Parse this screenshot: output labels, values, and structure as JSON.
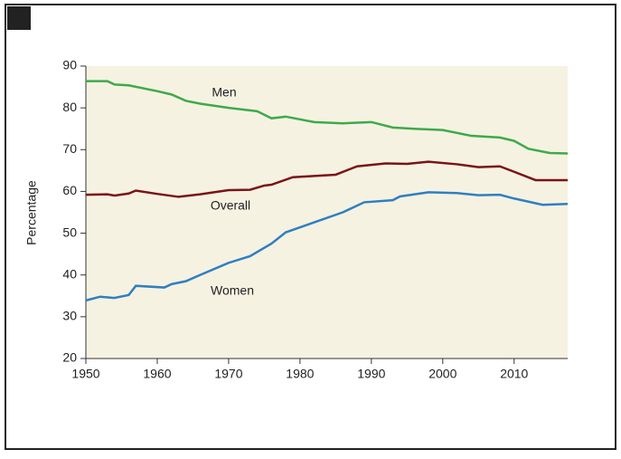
{
  "chart_data": {
    "type": "line",
    "y_label": "Percentage",
    "xlim": [
      1950,
      2017.5
    ],
    "xticks": [
      1950,
      1960,
      1970,
      1980,
      1990,
      2000,
      2010
    ],
    "ylim": [
      20,
      90
    ],
    "yticks": [
      20,
      30,
      40,
      50,
      60,
      70,
      80,
      90
    ],
    "grid": false,
    "series": [
      {
        "name": "Men",
        "color": "#3daa4a",
        "x": [
          1950,
          1953,
          1954,
          1956,
          1960,
          1962,
          1964,
          1966,
          1970,
          1974,
          1976,
          1978,
          1982,
          1986,
          1990,
          1993,
          1996,
          2000,
          2004,
          2008,
          2010,
          2012,
          2015,
          2017.5
        ],
        "values": [
          86.4,
          86.4,
          85.6,
          85.4,
          84.0,
          83.2,
          81.7,
          81.0,
          80.0,
          79.2,
          77.5,
          77.9,
          76.6,
          76.3,
          76.6,
          75.3,
          75.0,
          74.7,
          73.3,
          72.9,
          72.1,
          70.2,
          69.2,
          69.1
        ]
      },
      {
        "name": "Overall",
        "color": "#7a1416",
        "x": [
          1950,
          1953,
          1954,
          1956,
          1957,
          1960,
          1963,
          1966,
          1970,
          1973,
          1975,
          1976,
          1979,
          1985,
          1988,
          1992,
          1995,
          1998,
          2002,
          2005,
          2008,
          2010,
          2013,
          2017.5
        ],
        "values": [
          59.2,
          59.3,
          59.0,
          59.5,
          60.2,
          59.4,
          58.7,
          59.3,
          60.3,
          60.4,
          61.4,
          61.6,
          63.4,
          64.0,
          66.0,
          66.7,
          66.6,
          67.1,
          66.5,
          65.8,
          66.0,
          64.7,
          62.7,
          62.7
        ]
      },
      {
        "name": "Women",
        "color": "#2f7fc1",
        "x": [
          1950,
          1952,
          1954,
          1956,
          1957,
          1961,
          1962,
          1964,
          1966,
          1970,
          1973,
          1976,
          1978,
          1982,
          1986,
          1989,
          1993,
          1994,
          1998,
          2002,
          2005,
          2008,
          2010,
          2014,
          2017.5
        ],
        "values": [
          33.9,
          34.8,
          34.5,
          35.2,
          37.4,
          37.0,
          37.8,
          38.5,
          40.0,
          42.9,
          44.5,
          47.5,
          50.2,
          52.6,
          55.0,
          57.4,
          57.9,
          58.8,
          59.8,
          59.6,
          59.1,
          59.2,
          58.3,
          56.8,
          57.0
        ]
      }
    ]
  }
}
